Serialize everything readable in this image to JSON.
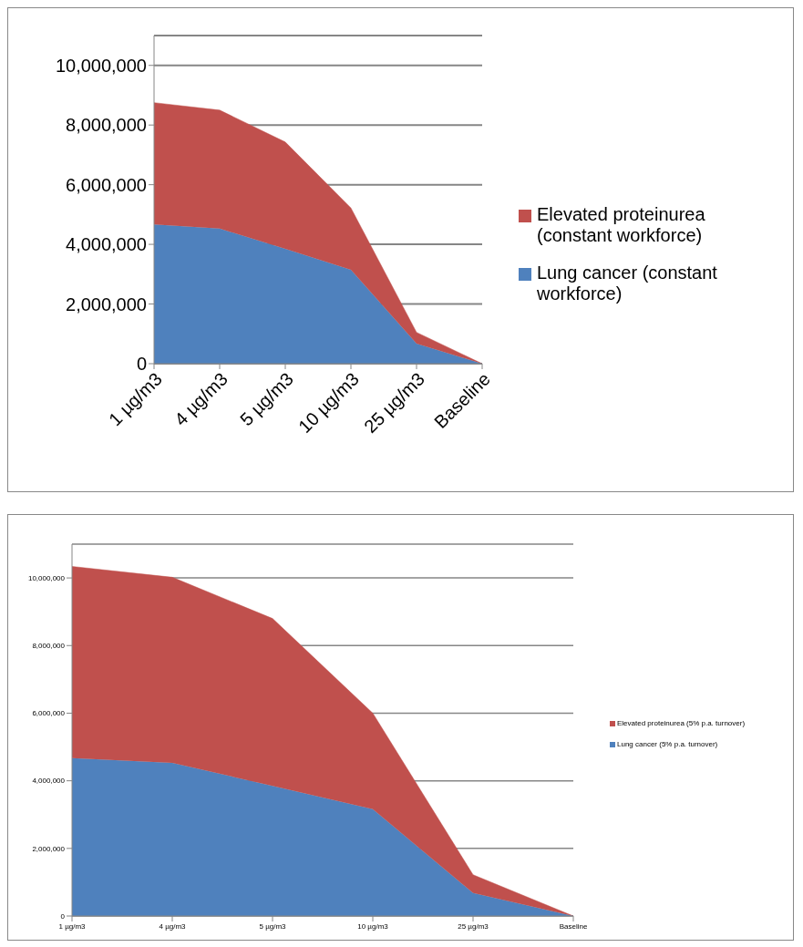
{
  "chart_data": [
    {
      "type": "area",
      "stacked": true,
      "categories": [
        "1 µg/m3",
        "4 µg/m3",
        "5 µg/m3",
        "10 µg/m3",
        "25 µg/m3",
        "Baseline"
      ],
      "ylim": [
        0,
        11000000
      ],
      "yticks": [
        {
          "value": 0,
          "label": "0"
        },
        {
          "value": 2000000,
          "label": "2,000,000"
        },
        {
          "value": 4000000,
          "label": "4,000,000"
        },
        {
          "value": 6000000,
          "label": "6,000,000"
        },
        {
          "value": 8000000,
          "label": "8,000,000"
        },
        {
          "value": 10000000,
          "label": "10,000,000"
        }
      ],
      "grid": "y",
      "legend": "right",
      "series": [
        {
          "name": "Lung cancer (constant workforce)",
          "color": "#4f81bd",
          "values": [
            4670000,
            4530000,
            3850000,
            3150000,
            670000,
            0
          ]
        },
        {
          "name": "Elevated proteinurea (constant workforce)",
          "color": "#c0504d",
          "values": [
            4080000,
            3970000,
            3580000,
            2070000,
            380000,
            0
          ]
        }
      ]
    },
    {
      "type": "area",
      "stacked": true,
      "categories": [
        "1 µg/m3",
        "4 µg/m3",
        "5 µg/m3",
        "10 µg/m3",
        "25 µg/m3",
        "Baseline"
      ],
      "ylim": [
        0,
        11000000
      ],
      "yticks": [
        {
          "value": 0,
          "label": "0"
        },
        {
          "value": 2000000,
          "label": "2,000,000"
        },
        {
          "value": 4000000,
          "label": "4,000,000"
        },
        {
          "value": 6000000,
          "label": "6,000,000"
        },
        {
          "value": 8000000,
          "label": "8,000,000"
        },
        {
          "value": 10000000,
          "label": "10,000,000"
        }
      ],
      "grid": "y",
      "legend": "right",
      "series": [
        {
          "name": "Lung cancer (5% p.a. turnover)",
          "color": "#4f81bd",
          "values": [
            4670000,
            4530000,
            3850000,
            3160000,
            680000,
            0
          ]
        },
        {
          "name": "Elevated proteinurea (5% p.a. turnover)",
          "color": "#c0504d",
          "values": [
            5670000,
            5490000,
            4950000,
            2840000,
            540000,
            0
          ]
        }
      ]
    }
  ]
}
